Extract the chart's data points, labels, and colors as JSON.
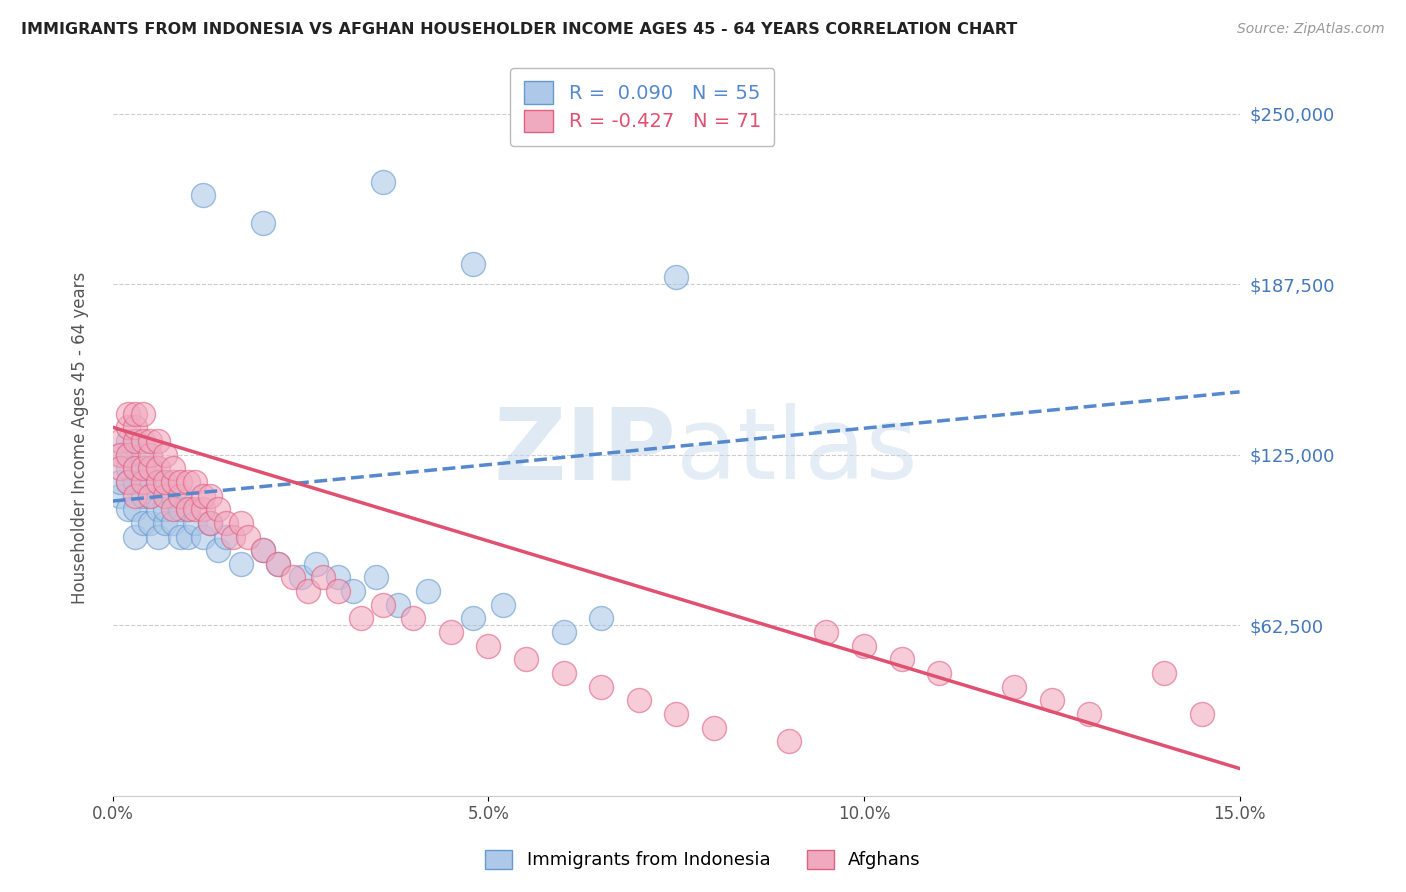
{
  "title": "IMMIGRANTS FROM INDONESIA VS AFGHAN HOUSEHOLDER INCOME AGES 45 - 64 YEARS CORRELATION CHART",
  "source": "Source: ZipAtlas.com",
  "ylabel": "Householder Income Ages 45 - 64 years",
  "xlim": [
    0.0,
    0.15
  ],
  "ylim": [
    0,
    262500
  ],
  "xticks": [
    0.0,
    0.05,
    0.1,
    0.15
  ],
  "xtick_labels": [
    "0.0%",
    "5.0%",
    "10.0%",
    "15.0%"
  ],
  "yticks": [
    0,
    62500,
    125000,
    187500,
    250000
  ],
  "ytick_labels_right": [
    "",
    "$62,500",
    "$125,000",
    "$187,500",
    "$250,000"
  ],
  "r_indonesia": 0.09,
  "n_indonesia": 55,
  "r_afghan": -0.427,
  "n_afghan": 71,
  "color_indonesia": "#adc8e8",
  "color_afghan": "#f0aac0",
  "edge_indonesia": "#6699cc",
  "edge_afghan": "#e06080",
  "trendline_indonesia": "#5588cc",
  "trendline_afghan": "#e05070",
  "watermark_color": "#c5d8ea",
  "background_color": "#ffffff",
  "grid_color": "#cccccc",
  "title_color": "#222222",
  "ylabel_color": "#555555",
  "ytick_color": "#4477bb",
  "xtick_color": "#555555",
  "trend_ind_y0": 108000,
  "trend_ind_y1": 148000,
  "trend_afg_y0": 135000,
  "trend_afg_y1": 10000,
  "ind_x": [
    0.001,
    0.001,
    0.001,
    0.002,
    0.002,
    0.002,
    0.002,
    0.003,
    0.003,
    0.003,
    0.003,
    0.003,
    0.004,
    0.004,
    0.004,
    0.004,
    0.005,
    0.005,
    0.005,
    0.006,
    0.006,
    0.006,
    0.007,
    0.007,
    0.007,
    0.008,
    0.008,
    0.009,
    0.009,
    0.01,
    0.01,
    0.011,
    0.012,
    0.013,
    0.014,
    0.015,
    0.017,
    0.02,
    0.022,
    0.025,
    0.027,
    0.03,
    0.032,
    0.035,
    0.038,
    0.042,
    0.048,
    0.052,
    0.06,
    0.065,
    0.012,
    0.02,
    0.036,
    0.048,
    0.075
  ],
  "ind_y": [
    110000,
    115000,
    125000,
    105000,
    115000,
    120000,
    130000,
    95000,
    105000,
    115000,
    120000,
    130000,
    100000,
    110000,
    115000,
    125000,
    100000,
    110000,
    120000,
    95000,
    105000,
    115000,
    100000,
    105000,
    115000,
    100000,
    110000,
    95000,
    105000,
    95000,
    105000,
    100000,
    95000,
    100000,
    90000,
    95000,
    85000,
    90000,
    85000,
    80000,
    85000,
    80000,
    75000,
    80000,
    70000,
    75000,
    65000,
    70000,
    60000,
    65000,
    220000,
    210000,
    225000,
    195000,
    190000
  ],
  "afg_x": [
    0.001,
    0.001,
    0.001,
    0.002,
    0.002,
    0.002,
    0.002,
    0.003,
    0.003,
    0.003,
    0.003,
    0.003,
    0.004,
    0.004,
    0.004,
    0.004,
    0.005,
    0.005,
    0.005,
    0.005,
    0.006,
    0.006,
    0.006,
    0.007,
    0.007,
    0.007,
    0.008,
    0.008,
    0.008,
    0.009,
    0.009,
    0.01,
    0.01,
    0.011,
    0.011,
    0.012,
    0.012,
    0.013,
    0.013,
    0.014,
    0.015,
    0.016,
    0.017,
    0.018,
    0.02,
    0.022,
    0.024,
    0.026,
    0.028,
    0.03,
    0.033,
    0.036,
    0.04,
    0.045,
    0.05,
    0.055,
    0.06,
    0.065,
    0.07,
    0.075,
    0.08,
    0.09,
    0.095,
    0.1,
    0.105,
    0.11,
    0.12,
    0.125,
    0.13,
    0.14,
    0.145
  ],
  "afg_y": [
    130000,
    125000,
    120000,
    115000,
    125000,
    135000,
    140000,
    110000,
    120000,
    130000,
    135000,
    140000,
    115000,
    120000,
    130000,
    140000,
    110000,
    120000,
    125000,
    130000,
    115000,
    120000,
    130000,
    110000,
    115000,
    125000,
    105000,
    115000,
    120000,
    110000,
    115000,
    105000,
    115000,
    105000,
    115000,
    105000,
    110000,
    100000,
    110000,
    105000,
    100000,
    95000,
    100000,
    95000,
    90000,
    85000,
    80000,
    75000,
    80000,
    75000,
    65000,
    70000,
    65000,
    60000,
    55000,
    50000,
    45000,
    40000,
    35000,
    30000,
    25000,
    20000,
    60000,
    55000,
    50000,
    45000,
    40000,
    35000,
    30000,
    45000,
    30000
  ]
}
